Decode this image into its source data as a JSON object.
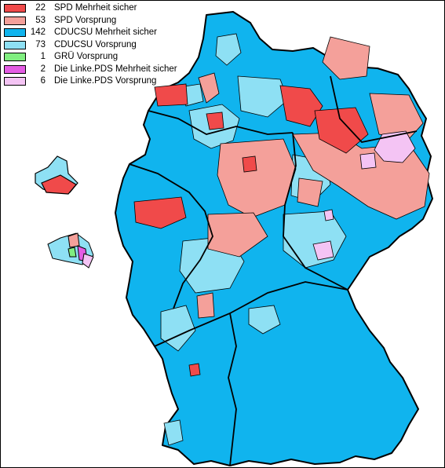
{
  "colors": {
    "spd_sicher": "#f04a4a",
    "spd_vorsprung": "#f4a09a",
    "cdu_sicher": "#10b4ee",
    "cdu_vorsprung": "#8ee0f4",
    "gruene_vorsprung": "#80ee80",
    "linke_sicher": "#e45ce4",
    "linke_vorsprung": "#f4c4f4",
    "border": "#000000"
  },
  "legend": [
    {
      "count": "22",
      "label": "SPD Mehrheit sicher",
      "color": "#f04a4a"
    },
    {
      "count": "53",
      "label": "SPD Vorsprung",
      "color": "#f4a09a"
    },
    {
      "count": "142",
      "label": "CDUCSU Mehrheit sicher",
      "color": "#10b4ee"
    },
    {
      "count": "73",
      "label": "CDUCSU Vorsprung",
      "color": "#8ee0f4"
    },
    {
      "count": "1",
      "label": "GRÜ Vorsprung",
      "color": "#80ee80"
    },
    {
      "count": "2",
      "label": "Die Linke.PDS Mehrheit sicher",
      "color": "#e45ce4"
    },
    {
      "count": "6",
      "label": "Die Linke.PDS Vorsprung",
      "color": "#f4c4f4"
    }
  ]
}
